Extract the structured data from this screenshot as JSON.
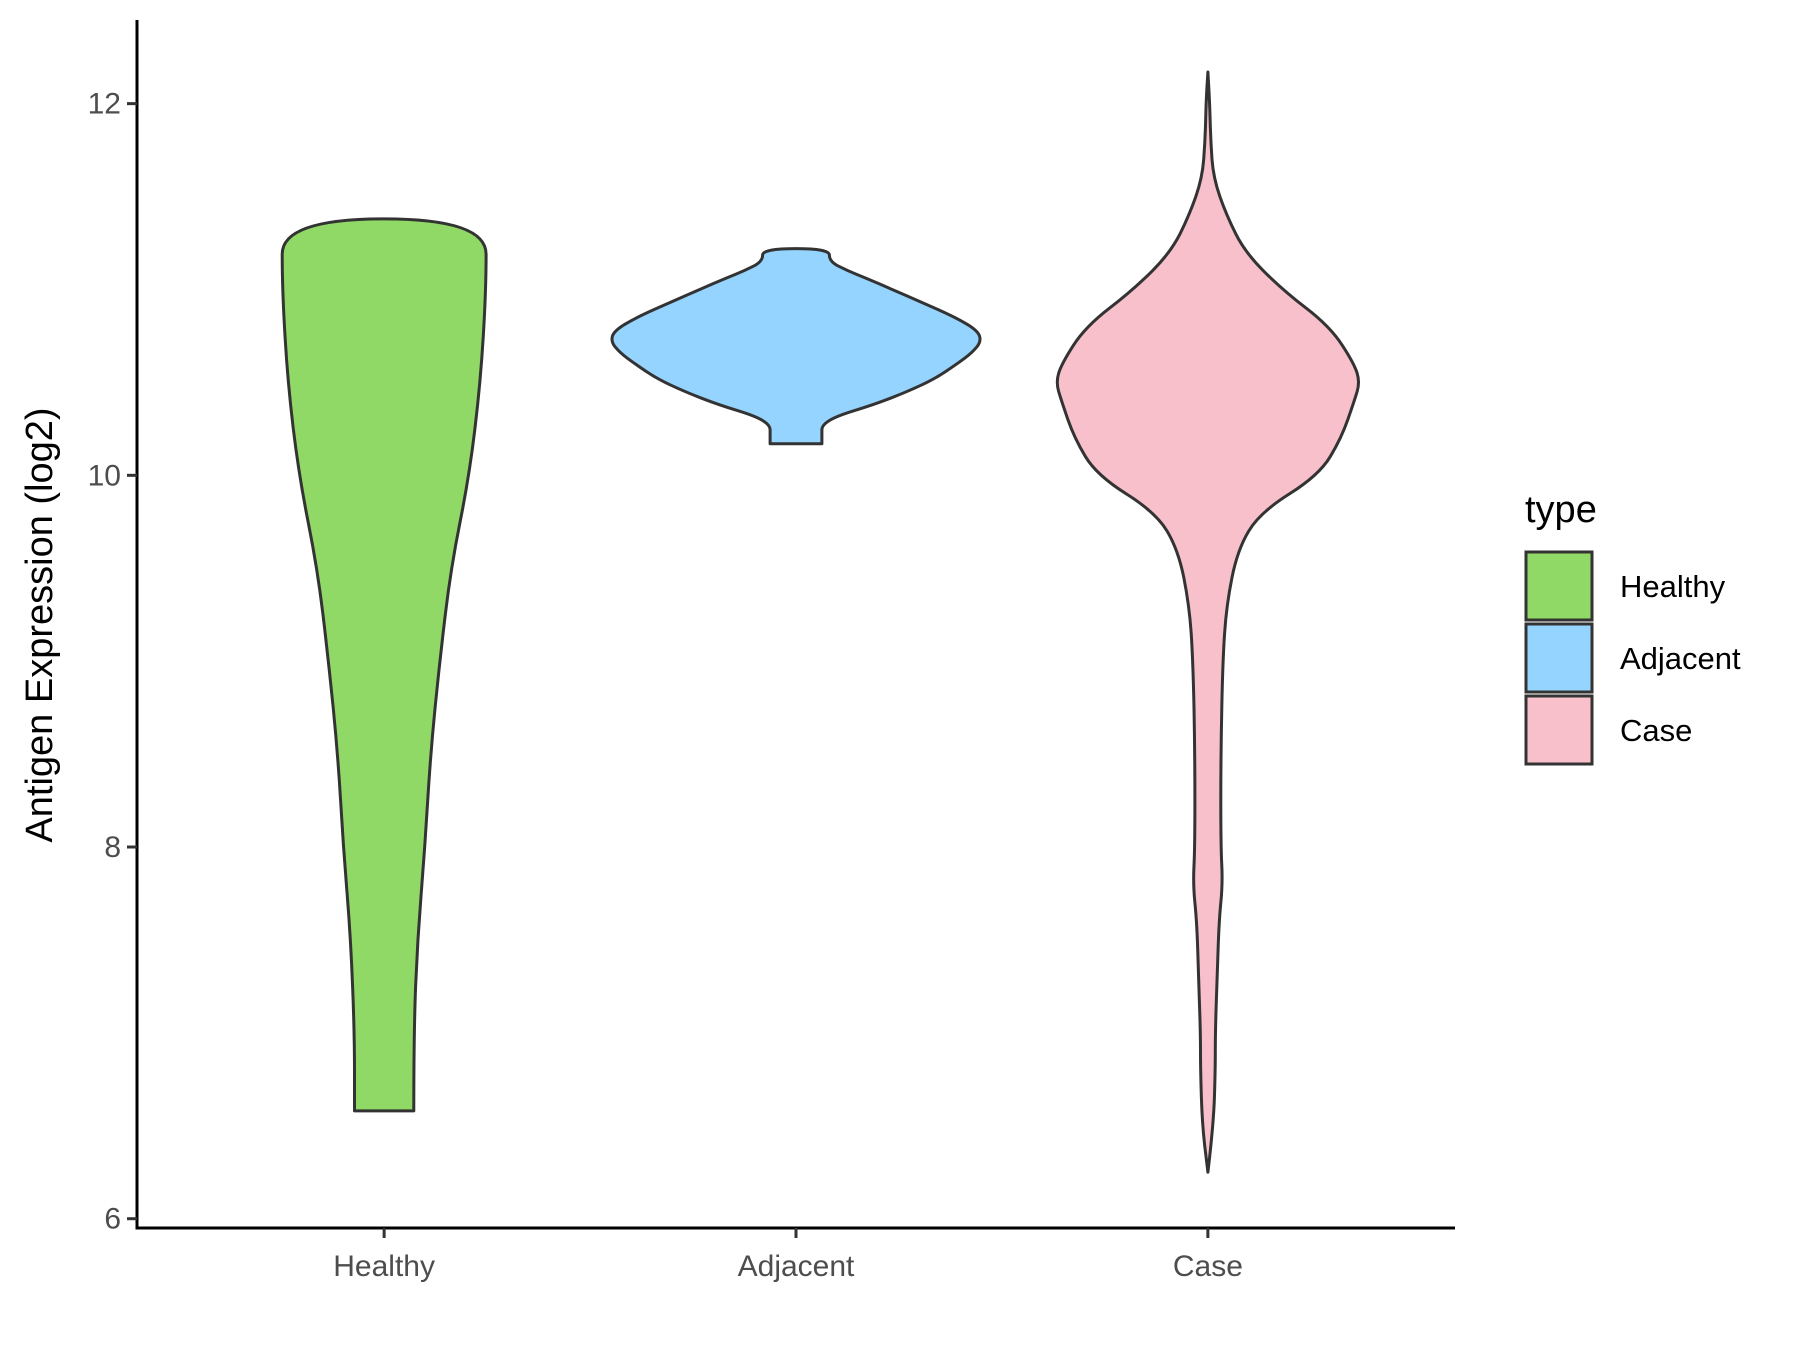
{
  "chart_data": {
    "type": "violin",
    "ylabel": "Antigen Expression (log2)",
    "xlabel": "",
    "categories": [
      "Healthy",
      "Adjacent",
      "Case"
    ],
    "ylim": [
      5.95,
      12.45
    ],
    "yticks": [
      6,
      8,
      10,
      12
    ],
    "yticks_labels": [
      "6",
      "8",
      "10",
      "12"
    ],
    "grid": false,
    "legend": {
      "title": "type",
      "position": "right",
      "entries": [
        "Healthy",
        "Adjacent",
        "Case"
      ]
    },
    "series": [
      {
        "name": "Healthy",
        "color": "#91D966",
        "range": [
          6.58,
          11.38
        ],
        "profile": [
          [
            6.58,
            0.16
          ],
          [
            7.0,
            0.16
          ],
          [
            7.5,
            0.18
          ],
          [
            8.0,
            0.22
          ],
          [
            8.5,
            0.25
          ],
          [
            9.0,
            0.3
          ],
          [
            9.5,
            0.36
          ],
          [
            10.0,
            0.46
          ],
          [
            10.5,
            0.52
          ],
          [
            11.0,
            0.55
          ],
          [
            11.38,
            0.55
          ]
        ]
      },
      {
        "name": "Adjacent",
        "color": "#94D4FF",
        "range": [
          10.17,
          11.22
        ],
        "profile": [
          [
            10.17,
            0.14
          ],
          [
            10.22,
            0.14
          ],
          [
            10.27,
            0.14
          ],
          [
            10.32,
            0.22
          ],
          [
            10.38,
            0.42
          ],
          [
            10.45,
            0.6
          ],
          [
            10.52,
            0.75
          ],
          [
            10.6,
            0.87
          ],
          [
            10.66,
            0.95
          ],
          [
            10.72,
            1.0
          ],
          [
            10.78,
            0.98
          ],
          [
            10.85,
            0.86
          ],
          [
            10.93,
            0.68
          ],
          [
            11.0,
            0.52
          ],
          [
            11.06,
            0.38
          ],
          [
            11.1,
            0.28
          ],
          [
            11.15,
            0.18
          ],
          [
            11.22,
            0.18
          ]
        ]
      },
      {
        "name": "Case",
        "color": "#F7C0CB",
        "range": [
          6.25,
          12.17
        ],
        "profile": [
          [
            6.25,
            0.0
          ],
          [
            6.5,
            0.03
          ],
          [
            6.8,
            0.04
          ],
          [
            7.0,
            0.04
          ],
          [
            7.3,
            0.05
          ],
          [
            7.6,
            0.06
          ],
          [
            7.8,
            0.08
          ],
          [
            8.0,
            0.07
          ],
          [
            8.5,
            0.07
          ],
          [
            9.0,
            0.08
          ],
          [
            9.3,
            0.1
          ],
          [
            9.6,
            0.16
          ],
          [
            9.8,
            0.28
          ],
          [
            10.0,
            0.6
          ],
          [
            10.2,
            0.72
          ],
          [
            10.4,
            0.79
          ],
          [
            10.5,
            0.82
          ],
          [
            10.6,
            0.79
          ],
          [
            10.8,
            0.66
          ],
          [
            11.0,
            0.4
          ],
          [
            11.2,
            0.2
          ],
          [
            11.4,
            0.1
          ],
          [
            11.6,
            0.03
          ],
          [
            11.8,
            0.015
          ],
          [
            12.0,
            0.01
          ],
          [
            12.17,
            0.0
          ]
        ]
      }
    ]
  }
}
